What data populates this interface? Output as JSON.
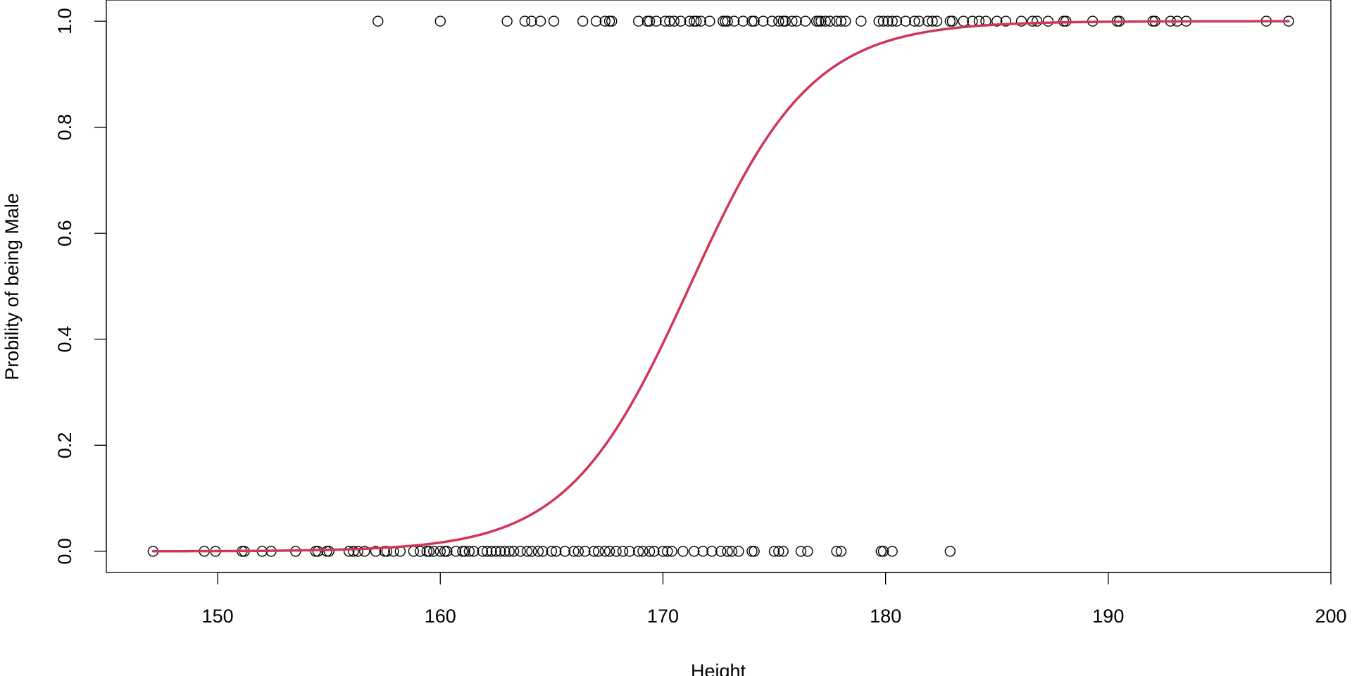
{
  "chart_data": {
    "type": "scatter",
    "title": "",
    "xlabel": "Height",
    "ylabel": "Probility of being Male",
    "xlim": [
      145,
      200
    ],
    "ylim": [
      -0.04,
      1.04
    ],
    "x_ticks": [
      150,
      160,
      170,
      180,
      190,
      200
    ],
    "x_tick_labels": [
      "150",
      "160",
      "170",
      "180",
      "190",
      "200"
    ],
    "y_ticks": [
      0.0,
      0.2,
      0.4,
      0.6,
      0.8,
      1.0
    ],
    "y_tick_labels": [
      "0.0",
      "0.2",
      "0.4",
      "0.6",
      "0.8",
      "1.0"
    ],
    "grid": false,
    "colors": {
      "points": "#000000",
      "curve": "#d1365a",
      "axes": "#000000"
    },
    "series": [
      {
        "type": "scatter",
        "y": 1,
        "x": [
          157.2,
          160.0,
          163.0,
          163.8,
          164.1,
          164.5,
          165.1,
          166.4,
          167.0,
          167.4,
          167.6,
          167.7,
          168.9,
          169.3,
          169.4,
          169.7,
          170.1,
          170.3,
          170.5,
          170.8,
          171.2,
          171.4,
          171.5,
          171.7,
          172.1,
          172.7,
          172.8,
          172.9,
          173.2,
          173.6,
          174.0,
          174.1,
          174.5,
          174.9,
          175.2,
          175.4,
          175.5,
          175.8,
          176.0,
          176.4,
          176.9,
          177.0,
          177.1,
          177.3,
          177.5,
          177.8,
          178.0,
          178.2,
          178.9,
          179.7,
          179.9,
          180.1,
          180.3,
          180.5,
          180.9,
          181.3,
          181.5,
          181.9,
          182.1,
          182.3,
          182.9,
          183.0,
          183.5,
          183.9,
          184.2,
          184.5,
          185.0,
          185.4,
          186.1,
          186.6,
          186.8,
          187.3,
          188.0,
          188.1,
          189.3,
          190.4,
          190.5,
          192.0,
          192.1,
          192.8,
          193.1,
          193.5,
          197.1,
          198.1
        ]
      },
      {
        "type": "scatter",
        "y": 0,
        "x": [
          147.1,
          149.4,
          149.9,
          151.1,
          151.2,
          152.0,
          152.4,
          153.5,
          154.4,
          154.5,
          154.9,
          155.0,
          155.9,
          156.1,
          156.3,
          156.6,
          157.1,
          157.5,
          157.6,
          157.9,
          158.2,
          158.8,
          159.1,
          159.4,
          159.5,
          159.7,
          160.0,
          160.2,
          160.3,
          160.7,
          161.0,
          161.1,
          161.3,
          161.5,
          161.9,
          162.1,
          162.3,
          162.5,
          162.7,
          162.9,
          163.1,
          163.3,
          163.6,
          163.9,
          164.1,
          164.4,
          164.6,
          165.0,
          165.2,
          165.6,
          166.0,
          166.2,
          166.5,
          166.9,
          167.1,
          167.4,
          167.6,
          167.9,
          168.2,
          168.5,
          168.9,
          169.1,
          169.4,
          169.6,
          170.0,
          170.2,
          170.4,
          170.9,
          171.4,
          171.8,
          172.2,
          172.6,
          172.9,
          173.1,
          173.4,
          174.0,
          174.1,
          175.0,
          175.2,
          175.4,
          176.2,
          176.5,
          177.8,
          178.0,
          179.8,
          179.9,
          180.3,
          182.9
        ]
      },
      {
        "type": "line",
        "model": "logistic",
        "midpoint": 171.2,
        "slope": 0.365,
        "x_range": [
          147.1,
          198.1
        ]
      }
    ]
  }
}
